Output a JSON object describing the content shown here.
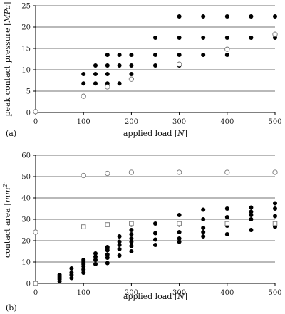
{
  "chart_data": [
    {
      "type": "scatter",
      "panel_label": "(a)",
      "xlabel_prefix": "applied load [",
      "xlabel_unit": "N",
      "xlabel_suffix": "]",
      "ylabel_prefix": "peak contact pressure [",
      "ylabel_unit": "MPa",
      "ylabel_suffix": "]",
      "xlim": [
        0,
        500
      ],
      "ylim": [
        0,
        25
      ],
      "xticks": [
        0,
        100,
        200,
        300,
        400,
        500
      ],
      "yticks": [
        0,
        5,
        10,
        15,
        20,
        25
      ],
      "grid": "horizontal",
      "series": [
        {
          "marker": "filled-circle",
          "points": [
            [
              100,
              9.0
            ],
            [
              100,
              6.8
            ],
            [
              125,
              11.0
            ],
            [
              125,
              9.0
            ],
            [
              125,
              6.8
            ],
            [
              150,
              13.5
            ],
            [
              150,
              11.0
            ],
            [
              150,
              9.0
            ],
            [
              150,
              6.8
            ],
            [
              175,
              13.5
            ],
            [
              175,
              11.0
            ],
            [
              175,
              6.8
            ],
            [
              200,
              13.5
            ],
            [
              200,
              11.0
            ],
            [
              200,
              9.0
            ],
            [
              250,
              17.5
            ],
            [
              250,
              13.5
            ],
            [
              250,
              11.0
            ],
            [
              300,
              22.5
            ],
            [
              300,
              17.5
            ],
            [
              300,
              13.5
            ],
            [
              300,
              11.0
            ],
            [
              350,
              22.5
            ],
            [
              350,
              17.5
            ],
            [
              350,
              13.5
            ],
            [
              400,
              22.5
            ],
            [
              400,
              17.5
            ],
            [
              400,
              13.5
            ],
            [
              450,
              22.5
            ],
            [
              450,
              17.5
            ],
            [
              500,
              22.5
            ],
            [
              500,
              17.5
            ]
          ]
        },
        {
          "marker": "open-circle",
          "points": [
            [
              0,
              0.2
            ],
            [
              100,
              3.8
            ],
            [
              150,
              6.0
            ],
            [
              200,
              7.8
            ],
            [
              300,
              11.3
            ],
            [
              400,
              14.8
            ],
            [
              500,
              18.3
            ]
          ]
        }
      ]
    },
    {
      "type": "scatter",
      "panel_label": "(b)",
      "xlabel_prefix": "applied load [",
      "xlabel_unit": "N",
      "xlabel_suffix": "]",
      "ylabel_prefix": "contact area [",
      "ylabel_unit": "mm",
      "ylabel_sup": "2",
      "ylabel_suffix": "]",
      "xlim": [
        0,
        500
      ],
      "ylim": [
        0,
        60
      ],
      "xticks": [
        0,
        100,
        200,
        300,
        400,
        500
      ],
      "yticks": [
        0,
        10,
        20,
        30,
        40,
        50,
        60
      ],
      "grid": "horizontal",
      "series": [
        {
          "marker": "filled-circle",
          "points": [
            [
              50,
              1.0
            ],
            [
              50,
              2.0
            ],
            [
              50,
              3.0
            ],
            [
              50,
              4.0
            ],
            [
              75,
              2.5
            ],
            [
              75,
              4.0
            ],
            [
              75,
              5.0
            ],
            [
              75,
              7.0
            ],
            [
              100,
              5.0
            ],
            [
              100,
              6.5
            ],
            [
              100,
              8.0
            ],
            [
              100,
              9.0
            ],
            [
              100,
              10.0
            ],
            [
              100,
              11.0
            ],
            [
              125,
              9.0
            ],
            [
              125,
              11.0
            ],
            [
              125,
              12.5
            ],
            [
              125,
              14.0
            ],
            [
              150,
              9.5
            ],
            [
              150,
              12.0
            ],
            [
              150,
              13.5
            ],
            [
              150,
              15.5
            ],
            [
              150,
              16.5
            ],
            [
              150,
              17.0
            ],
            [
              175,
              13.0
            ],
            [
              175,
              16.0
            ],
            [
              175,
              18.0
            ],
            [
              175,
              19.5
            ],
            [
              175,
              22.0
            ],
            [
              200,
              15.0
            ],
            [
              200,
              17.5
            ],
            [
              200,
              19.5
            ],
            [
              200,
              21.0
            ],
            [
              200,
              23.0
            ],
            [
              200,
              25.0
            ],
            [
              200,
              27.5
            ],
            [
              250,
              18.0
            ],
            [
              250,
              20.5
            ],
            [
              250,
              23.5
            ],
            [
              250,
              28.0
            ],
            [
              300,
              19.5
            ],
            [
              300,
              21.0
            ],
            [
              300,
              24.0
            ],
            [
              300,
              27.5
            ],
            [
              300,
              32.0
            ],
            [
              350,
              22.0
            ],
            [
              350,
              24.0
            ],
            [
              350,
              26.0
            ],
            [
              350,
              30.0
            ],
            [
              350,
              34.5
            ],
            [
              400,
              23.0
            ],
            [
              400,
              27.0
            ],
            [
              400,
              31.0
            ],
            [
              400,
              35.0
            ],
            [
              450,
              25.0
            ],
            [
              450,
              30.0
            ],
            [
              450,
              32.0
            ],
            [
              450,
              33.5
            ],
            [
              450,
              35.5
            ],
            [
              500,
              26.5
            ],
            [
              500,
              28.0
            ],
            [
              500,
              31.5
            ],
            [
              500,
              35.0
            ],
            [
              500,
              37.5
            ]
          ]
        },
        {
          "marker": "open-circle",
          "points": [
            [
              0,
              24.0
            ],
            [
              100,
              50.5
            ],
            [
              150,
              51.5
            ],
            [
              200,
              52.0
            ],
            [
              300,
              52.0
            ],
            [
              400,
              52.0
            ],
            [
              500,
              52.0
            ]
          ]
        },
        {
          "marker": "open-square",
          "points": [
            [
              0,
              0.0
            ],
            [
              100,
              26.5
            ],
            [
              150,
              27.5
            ],
            [
              200,
              28.0
            ],
            [
              300,
              28.0
            ],
            [
              400,
              28.0
            ],
            [
              500,
              28.0
            ]
          ]
        }
      ]
    }
  ]
}
